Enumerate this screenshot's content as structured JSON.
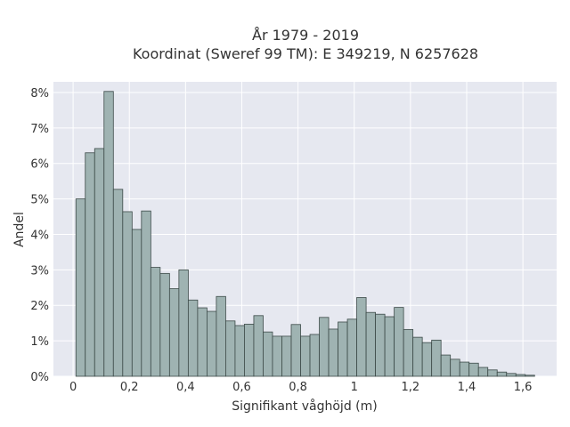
{
  "chart_data": {
    "type": "bar",
    "title": [
      "År 1979 - 2019",
      "Koordinat (Sweref 99 TM): E 349219, N 6257628"
    ],
    "xlabel": "Signifikant våghöjd (m)",
    "ylabel": "Andel",
    "xlim": [
      -0.07,
      1.72
    ],
    "ylim": [
      0,
      8.3
    ],
    "grid": true,
    "colors": {
      "plot_bg": "#e6e8f0",
      "grid": "#ffffff",
      "bar_fill": "#9fb3b2",
      "bar_edge": "#3c4a48"
    },
    "x_ticks": [
      {
        "value": 0,
        "label": "0"
      },
      {
        "value": 0.2,
        "label": "0,2"
      },
      {
        "value": 0.4,
        "label": "0,4"
      },
      {
        "value": 0.6,
        "label": "0,6"
      },
      {
        "value": 0.8,
        "label": "0,8"
      },
      {
        "value": 1.0,
        "label": "1"
      },
      {
        "value": 1.2,
        "label": "1,2"
      },
      {
        "value": 1.4,
        "label": "1,4"
      },
      {
        "value": 1.6,
        "label": "1,6"
      }
    ],
    "y_ticks": [
      {
        "value": 0,
        "label": "0%"
      },
      {
        "value": 1,
        "label": "1%"
      },
      {
        "value": 2,
        "label": "2%"
      },
      {
        "value": 3,
        "label": "3%"
      },
      {
        "value": 4,
        "label": "4%"
      },
      {
        "value": 5,
        "label": "5%"
      },
      {
        "value": 6,
        "label": "6%"
      },
      {
        "value": 7,
        "label": "7%"
      },
      {
        "value": 8,
        "label": "8%"
      }
    ],
    "bins": {
      "start": 0.01,
      "width": 0.0333,
      "values": [
        5.0,
        6.3,
        6.42,
        8.03,
        5.27,
        4.64,
        4.14,
        4.66,
        3.07,
        2.9,
        2.47,
        3.0,
        2.15,
        1.93,
        1.83,
        2.25,
        1.56,
        1.43,
        1.47,
        1.71,
        1.25,
        1.13,
        1.13,
        1.46,
        1.13,
        1.18,
        1.66,
        1.33,
        1.53,
        1.61,
        2.22,
        1.8,
        1.75,
        1.68,
        1.94,
        1.32,
        1.1,
        0.95,
        1.02,
        0.6,
        0.48,
        0.4,
        0.37,
        0.25,
        0.18,
        0.12,
        0.08,
        0.05,
        0.03
      ]
    }
  }
}
